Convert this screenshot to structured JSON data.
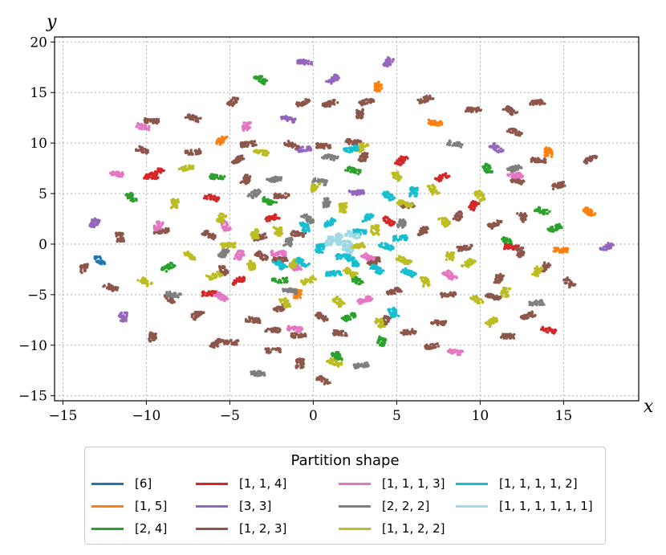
{
  "chart_data": {
    "type": "scatter",
    "title": "",
    "xlabel": "x",
    "ylabel": "y",
    "xlim": [
      -15.5,
      19.5
    ],
    "ylim": [
      -15.5,
      20.5
    ],
    "xticks": [
      -15,
      -10,
      -5,
      0,
      5,
      10,
      15
    ],
    "yticks": [
      -15,
      -10,
      -5,
      0,
      5,
      10,
      15,
      20
    ],
    "xtick_labels": [
      "−15",
      "−10",
      "−5",
      "0",
      "5",
      "10",
      "15"
    ],
    "ytick_labels": [
      "−15",
      "−10",
      "−5",
      "0",
      "5",
      "10",
      "15",
      "20"
    ],
    "grid": true,
    "legend": {
      "title": "Partition shape",
      "position": "below",
      "entries": [
        {
          "label": "[6]",
          "color": "#1f77b4"
        },
        {
          "label": "[1, 5]",
          "color": "#ff7f0e"
        },
        {
          "label": "[2, 4]",
          "color": "#2ca02c"
        },
        {
          "label": "[1, 1, 4]",
          "color": "#d62728"
        },
        {
          "label": "[3, 3]",
          "color": "#9467bd"
        },
        {
          "label": "[1, 2, 3]",
          "color": "#8c564b"
        },
        {
          "label": "[1, 1, 1, 3]",
          "color": "#e377c2"
        },
        {
          "label": "[2, 2, 2]",
          "color": "#7f7f7f"
        },
        {
          "label": "[1, 1, 2, 2]",
          "color": "#bcbd22"
        },
        {
          "label": "[1, 1, 1, 1, 2]",
          "color": "#17becf"
        },
        {
          "label": "[1, 1, 1, 1, 1, 1]",
          "color": "#9edae5"
        }
      ]
    },
    "series": [
      {
        "name": "[6]",
        "color": "#1f77b4",
        "clusters": [
          [
            -12.8,
            -1.6
          ]
        ]
      },
      {
        "name": "[1, 5]",
        "color": "#ff7f0e",
        "clusters": [
          [
            3.9,
            15.6
          ],
          [
            -5.5,
            10.3
          ],
          [
            7.3,
            12.0
          ],
          [
            14.1,
            9.1
          ],
          [
            14.8,
            -0.6
          ],
          [
            -0.9,
            -4.9
          ],
          [
            16.5,
            3.2
          ]
        ]
      },
      {
        "name": "[2, 4]",
        "color": "#2ca02c",
        "clusters": [
          [
            -3.1,
            16.3
          ],
          [
            -10.9,
            4.6
          ],
          [
            -5.8,
            6.6
          ],
          [
            10.4,
            7.5
          ],
          [
            14.5,
            1.6
          ],
          [
            -8.7,
            -2.3
          ],
          [
            11.6,
            0.3
          ],
          [
            2.4,
            7.3
          ],
          [
            4.1,
            -9.6
          ],
          [
            1.4,
            -11.1
          ],
          [
            -2.0,
            -3.6
          ],
          [
            2.6,
            -3.6
          ],
          [
            13.7,
            3.3
          ],
          [
            -2.7,
            4.2
          ],
          [
            2.2,
            -7.2
          ]
        ]
      },
      {
        "name": "[1, 1, 4]",
        "color": "#d62728",
        "clusters": [
          [
            -9.7,
            6.7
          ],
          [
            5.3,
            8.3
          ],
          [
            -6.1,
            4.6
          ],
          [
            9.6,
            3.8
          ],
          [
            14.1,
            -8.5
          ],
          [
            -2.5,
            2.6
          ],
          [
            7.7,
            6.6
          ],
          [
            -4.5,
            -3.6
          ],
          [
            -6.2,
            -4.9
          ],
          [
            4.5,
            2.3
          ],
          [
            11.9,
            -0.3
          ],
          [
            -9.4,
            7.1
          ]
        ]
      },
      {
        "name": "[3, 3]",
        "color": "#9467bd",
        "clusters": [
          [
            -0.5,
            18.0
          ],
          [
            4.5,
            18.0
          ],
          [
            1.2,
            16.3
          ],
          [
            -13.1,
            2.1
          ],
          [
            11.0,
            9.5
          ],
          [
            17.6,
            -0.3
          ],
          [
            -11.4,
            -7.2
          ],
          [
            -1.5,
            12.4
          ],
          [
            2.6,
            5.1
          ],
          [
            -0.6,
            9.4
          ]
        ]
      },
      {
        "name": "[1, 2, 3]",
        "color": "#8c564b",
        "clusters": [
          [
            -4.8,
            14.1
          ],
          [
            -0.6,
            14.0
          ],
          [
            1.0,
            13.9
          ],
          [
            3.2,
            14.1
          ],
          [
            6.7,
            14.3
          ],
          [
            9.6,
            13.3
          ],
          [
            11.8,
            13.2
          ],
          [
            13.4,
            14.0
          ],
          [
            -9.7,
            12.2
          ],
          [
            -7.2,
            12.5
          ],
          [
            2.8,
            12.9
          ],
          [
            -3.9,
            9.9
          ],
          [
            -1.3,
            9.8
          ],
          [
            0.6,
            9.7
          ],
          [
            2.4,
            10.1
          ],
          [
            -10.2,
            9.3
          ],
          [
            -7.2,
            9.1
          ],
          [
            -4.5,
            8.4
          ],
          [
            3.0,
            8.6
          ],
          [
            12.1,
            11.1
          ],
          [
            16.6,
            8.4
          ],
          [
            13.5,
            8.3
          ],
          [
            -11.6,
            0.7
          ],
          [
            -13.8,
            -2.4
          ],
          [
            -9.1,
            1.3
          ],
          [
            -6.2,
            0.9
          ],
          [
            -3.2,
            0.7
          ],
          [
            -12.1,
            -4.3
          ],
          [
            -5.4,
            -2.6
          ],
          [
            -3.1,
            -1.2
          ],
          [
            -0.9,
            1.0
          ],
          [
            -8.6,
            -5.4
          ],
          [
            -7.0,
            -7.0
          ],
          [
            -3.6,
            -7.5
          ],
          [
            -1.9,
            -6.3
          ],
          [
            -0.9,
            -9.0
          ],
          [
            0.5,
            -7.2
          ],
          [
            -2.4,
            -8.5
          ],
          [
            -4.9,
            -9.7
          ],
          [
            -9.6,
            -9.2
          ],
          [
            -5.8,
            -9.8
          ],
          [
            -2.4,
            -10.5
          ],
          [
            -0.8,
            -11.8
          ],
          [
            0.6,
            -13.5
          ],
          [
            1.6,
            -8.8
          ],
          [
            4.3,
            -7.6
          ],
          [
            5.7,
            -8.7
          ],
          [
            8.1,
            -5.0
          ],
          [
            10.8,
            -5.2
          ],
          [
            7.5,
            -7.8
          ],
          [
            7.1,
            -10.1
          ],
          [
            11.7,
            -9.1
          ],
          [
            12.9,
            -7.1
          ],
          [
            15.3,
            -3.8
          ],
          [
            11.1,
            -3.4
          ],
          [
            13.9,
            -2.3
          ],
          [
            12.4,
            -0.8
          ],
          [
            9.1,
            -0.4
          ],
          [
            10.9,
            2.0
          ],
          [
            8.7,
            2.8
          ],
          [
            5.6,
            3.8
          ],
          [
            6.6,
            1.3
          ],
          [
            12.6,
            2.7
          ],
          [
            14.7,
            5.8
          ],
          [
            3.7,
            -1.7
          ],
          [
            4.8,
            -4.7
          ],
          [
            12.3,
            6.2
          ],
          [
            -4.0,
            6.4
          ],
          [
            -1.9,
            4.8
          ],
          [
            -2.0,
            -1.5
          ]
        ]
      },
      {
        "name": "[1, 1, 1, 3]",
        "color": "#e377c2",
        "clusters": [
          [
            -11.8,
            7.0
          ],
          [
            -4.0,
            11.6
          ],
          [
            -10.2,
            11.6
          ],
          [
            -1.1,
            -2.2
          ],
          [
            8.2,
            -3.1
          ],
          [
            3.1,
            -5.5
          ],
          [
            -1.1,
            -8.4
          ],
          [
            8.5,
            -10.7
          ],
          [
            -5.3,
            1.8
          ],
          [
            -4.4,
            -1.1
          ],
          [
            3.3,
            -1.3
          ],
          [
            -9.3,
            1.8
          ],
          [
            -2.1,
            -0.9
          ],
          [
            -5.5,
            -5.2
          ],
          [
            12.1,
            6.8
          ]
        ]
      },
      {
        "name": "[2, 2, 2]",
        "color": "#7f7f7f",
        "clusters": [
          [
            -3.3,
            -12.8
          ],
          [
            -8.4,
            -5.0
          ],
          [
            13.4,
            -5.8
          ],
          [
            -3.5,
            5.0
          ],
          [
            0.8,
            4.1
          ],
          [
            -2.3,
            6.4
          ],
          [
            0.4,
            6.2
          ],
          [
            8.5,
            9.9
          ],
          [
            12.1,
            7.5
          ],
          [
            2.9,
            -12.0
          ],
          [
            -1.5,
            0.2
          ],
          [
            -0.3,
            2.5
          ],
          [
            5.3,
            2.0
          ],
          [
            -1.4,
            -4.6
          ],
          [
            1.0,
            8.6
          ],
          [
            -5.4,
            -0.9
          ]
        ]
      },
      {
        "name": "[1, 1, 2, 2]",
        "color": "#bcbd22",
        "clusters": [
          [
            -3.1,
            9.1
          ],
          [
            2.9,
            9.6
          ],
          [
            5.0,
            6.7
          ],
          [
            7.2,
            5.4
          ],
          [
            10.0,
            4.8
          ],
          [
            -7.6,
            7.5
          ],
          [
            -8.3,
            4.0
          ],
          [
            -5.5,
            2.6
          ],
          [
            -2.1,
            1.3
          ],
          [
            1.8,
            3.6
          ],
          [
            5.5,
            4.0
          ],
          [
            7.9,
            2.2
          ],
          [
            9.3,
            -1.9
          ],
          [
            -5.1,
            -0.1
          ],
          [
            -3.7,
            -2.1
          ],
          [
            -1.1,
            -1.9
          ],
          [
            2.2,
            -2.8
          ],
          [
            5.4,
            -1.6
          ],
          [
            6.7,
            -3.7
          ],
          [
            9.8,
            -5.5
          ],
          [
            -1.7,
            -5.8
          ],
          [
            1.5,
            -5.7
          ],
          [
            4.0,
            -7.8
          ],
          [
            -10.1,
            -3.7
          ],
          [
            10.7,
            -7.7
          ],
          [
            8.2,
            -1.2
          ],
          [
            -3.5,
            1.0
          ],
          [
            2.6,
            -0.2
          ],
          [
            0.1,
            5.6
          ],
          [
            -5.9,
            -3.1
          ],
          [
            3.7,
            1.4
          ],
          [
            -0.3,
            -3.6
          ],
          [
            11.5,
            -4.8
          ],
          [
            13.4,
            -2.7
          ],
          [
            -7.4,
            -1.2
          ],
          [
            1.3,
            -11.7
          ]
        ]
      },
      {
        "name": "[1, 1, 1, 1, 2]",
        "color": "#17becf",
        "clusters": [
          [
            2.3,
            9.4
          ],
          [
            6.0,
            5.2
          ],
          [
            1.0,
            2.1
          ],
          [
            -0.5,
            1.7
          ],
          [
            1.8,
            -1.2
          ],
          [
            -0.7,
            -1.8
          ],
          [
            4.4,
            -0.2
          ],
          [
            5.2,
            0.6
          ],
          [
            5.7,
            -2.8
          ],
          [
            3.2,
            2.6
          ],
          [
            1.2,
            -2.9
          ],
          [
            0.4,
            -0.4
          ],
          [
            2.8,
            1.2
          ],
          [
            4.5,
            4.8
          ],
          [
            4.8,
            -6.8
          ],
          [
            -2.0,
            -2.0
          ],
          [
            3.8,
            -2.5
          ],
          [
            2.4,
            -1.8
          ]
        ]
      },
      {
        "name": "[1, 1, 1, 1, 1, 1]",
        "color": "#9edae5",
        "clusters": [
          [
            1.5,
            0.6
          ],
          [
            1.9,
            0.1
          ],
          [
            2.4,
            0.9
          ],
          [
            1.0,
            0.3
          ],
          [
            2.0,
            -0.5
          ]
        ]
      }
    ]
  }
}
